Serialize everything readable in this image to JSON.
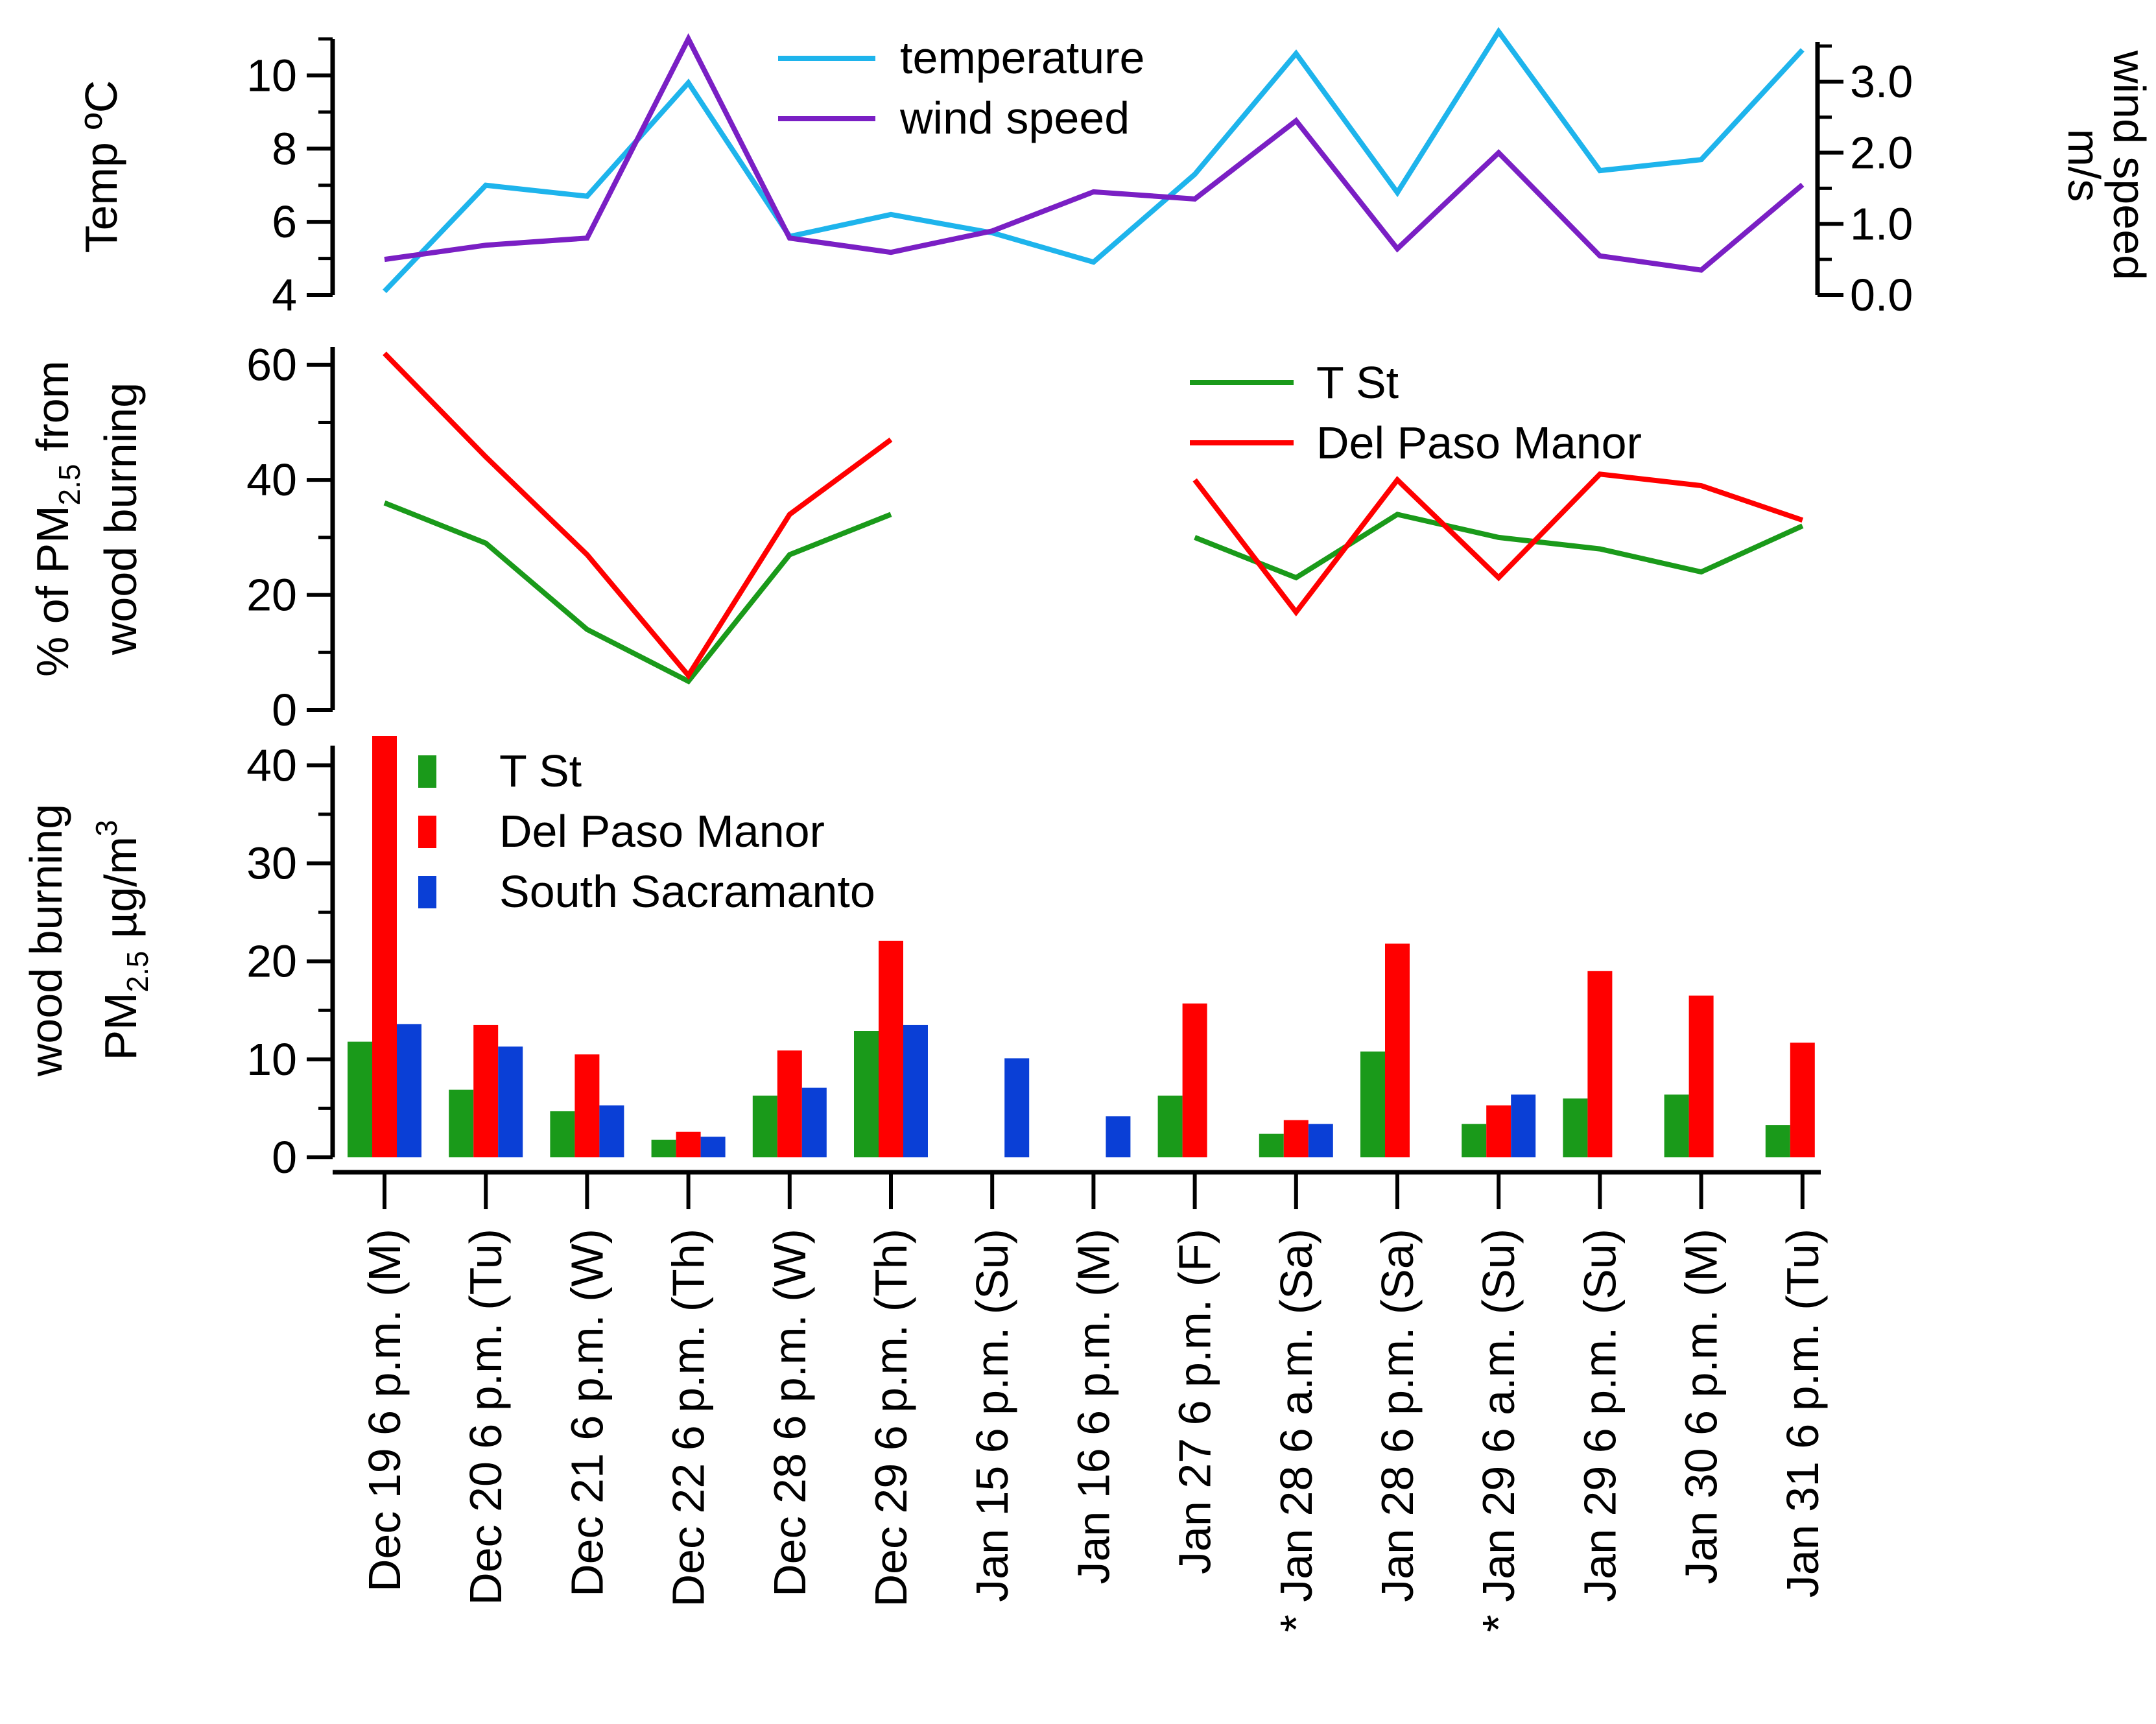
{
  "categories": [
    "Dec 19 6 p.m. (M)",
    "Dec 20 6 p.m. (Tu)",
    "Dec 21 6 p.m. (W)",
    "Dec 22 6 p.m. (Th)",
    "Dec 28 6 p.m. (W)",
    "Dec 29 6 p.m. (Th)",
    "Jan 15 6 p.m. (Su)",
    "Jan 16 6 p.m. (M)",
    "Jan 27 6 p.m. (F)",
    "* Jan 28 6 a.m. (Sa)",
    "Jan 28 6 p.m. (Sa)",
    "* Jan 29 6 a.m. (Su)",
    "Jan 29 6 p.m. (Su)",
    "Jan 30 6 p.m. (M)",
    "Jan 31 6 p.m. (Tu)"
  ],
  "colors": {
    "temperature": "#1eb4ec",
    "wind_speed": "#7a1fc4",
    "t_st": "#1a9a1a",
    "del_paso_manor": "#ff0000",
    "south_sacramento": "#0a3fd6"
  },
  "chart_data": [
    {
      "type": "line",
      "ylabel_left": "Temp ºC",
      "ylabel_right": [
        "wind speed",
        "m/s"
      ],
      "ylim_left": [
        4,
        11
      ],
      "ylim_right": [
        0,
        3.6
      ],
      "yticks_left": [
        4,
        6,
        8,
        10
      ],
      "yticks_right": [
        "0.0",
        "1.0",
        "2.0",
        "3.0"
      ],
      "series": [
        {
          "name": "temperature",
          "axis": "left",
          "values": [
            4.1,
            7.0,
            6.7,
            9.8,
            5.6,
            6.2,
            5.7,
            4.9,
            7.3,
            10.6,
            6.8,
            11.2,
            7.4,
            7.7,
            10.7
          ]
        },
        {
          "name": "wind speed",
          "axis": "right",
          "values": [
            0.5,
            0.7,
            0.8,
            3.6,
            0.8,
            0.6,
            0.9,
            1.45,
            1.35,
            2.45,
            0.65,
            2.0,
            0.55,
            0.35,
            1.55
          ]
        }
      ]
    },
    {
      "type": "line",
      "ylabel": [
        "% of PM",
        "2.5",
        " from",
        "wood burning"
      ],
      "ylim": [
        0,
        62
      ],
      "yticks": [
        0,
        20,
        40,
        60
      ],
      "series": [
        {
          "name": "T St",
          "values": [
            36,
            29,
            14,
            5,
            27,
            34,
            null,
            null,
            30,
            23,
            34,
            30,
            28,
            24,
            32
          ]
        },
        {
          "name": "Del Paso Manor",
          "values": [
            62,
            44,
            27,
            6,
            34,
            47,
            null,
            null,
            40,
            17,
            40,
            23,
            41,
            39,
            33
          ]
        }
      ]
    },
    {
      "type": "bar",
      "ylabel": [
        "wood burning",
        "PM",
        "2.5",
        " µg/m",
        "3"
      ],
      "ylim": [
        0,
        43
      ],
      "yticks": [
        0,
        10,
        20,
        30,
        40
      ],
      "series": [
        {
          "name": "T St",
          "values": [
            11.8,
            6.9,
            4.7,
            1.8,
            6.3,
            12.9,
            null,
            null,
            6.3,
            2.4,
            10.8,
            3.4,
            6.0,
            6.4,
            3.3
          ]
        },
        {
          "name": "Del Paso Manor",
          "values": [
            43,
            13.5,
            10.5,
            2.6,
            10.9,
            22.1,
            null,
            null,
            15.7,
            3.8,
            21.8,
            5.3,
            19.0,
            16.5,
            11.7
          ]
        },
        {
          "name": "South Sacramanto",
          "values": [
            13.6,
            11.3,
            5.3,
            2.1,
            7.1,
            13.5,
            10.1,
            4.2,
            null,
            3.4,
            null,
            6.4,
            null,
            null,
            null
          ]
        }
      ]
    }
  ]
}
